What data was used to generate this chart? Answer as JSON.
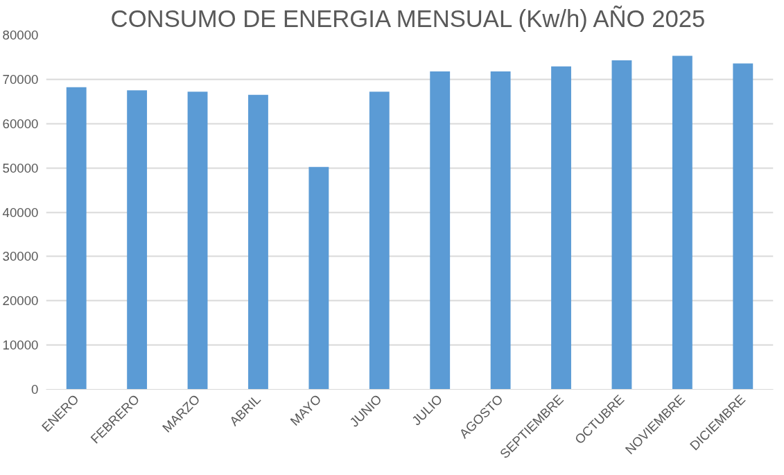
{
  "chart_data": {
    "type": "bar",
    "title": "CONSUMO DE ENERGIA MENSUAL (Kw/h) AÑO 2025",
    "categories": [
      "ENERO",
      "FEBRERO",
      "MARZO",
      "ABRIL",
      "MAYO",
      "JUNIO",
      "JULIO",
      "AGOSTO",
      "SEPTIEMBRE",
      "OCTUBRE",
      "NOVIEMBRE",
      "DICIEMBRE"
    ],
    "values": [
      68200,
      67500,
      67200,
      66500,
      50200,
      67200,
      71800,
      71800,
      72900,
      74300,
      75300,
      73600
    ],
    "color": "#5b9bd5",
    "ylim": [
      0,
      80000
    ],
    "yticks": [
      0,
      10000,
      20000,
      30000,
      40000,
      50000,
      60000,
      70000,
      80000
    ],
    "grid": "y"
  }
}
